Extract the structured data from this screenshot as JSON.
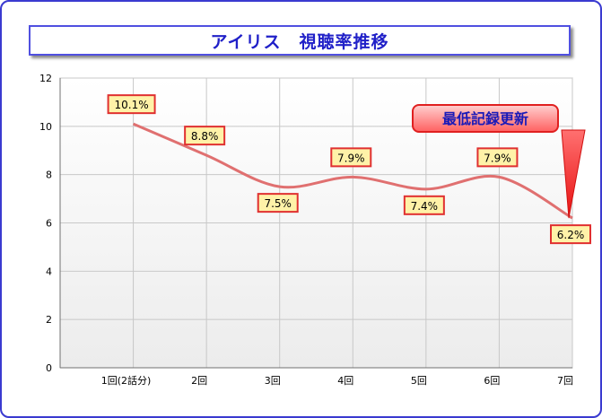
{
  "chart_data": {
    "type": "line",
    "title": "アイリス　視聴率推移",
    "categories": [
      "1回(2話分)",
      "2回",
      "3回",
      "4回",
      "5回",
      "6回",
      "7回"
    ],
    "values": [
      10.1,
      8.8,
      7.5,
      7.9,
      7.4,
      7.9,
      6.2
    ],
    "data_labels": [
      "10.1%",
      "8.8%",
      "7.5%",
      "7.9%",
      "7.4%",
      "7.9%",
      "6.2%"
    ],
    "label_side": [
      "above",
      "above",
      "below",
      "above",
      "below",
      "above",
      "below"
    ],
    "ylim": [
      0,
      12
    ],
    "yticks": [
      "0",
      "2",
      "4",
      "6",
      "8",
      "10",
      "12"
    ],
    "xlabel": "",
    "ylabel": "",
    "grid": true,
    "smooth": true,
    "line_color": "#e07070",
    "label_fill": "#fff2a8",
    "label_border": "#e03030",
    "annotation": {
      "text": "最低記録更新",
      "category_index": 6
    }
  }
}
